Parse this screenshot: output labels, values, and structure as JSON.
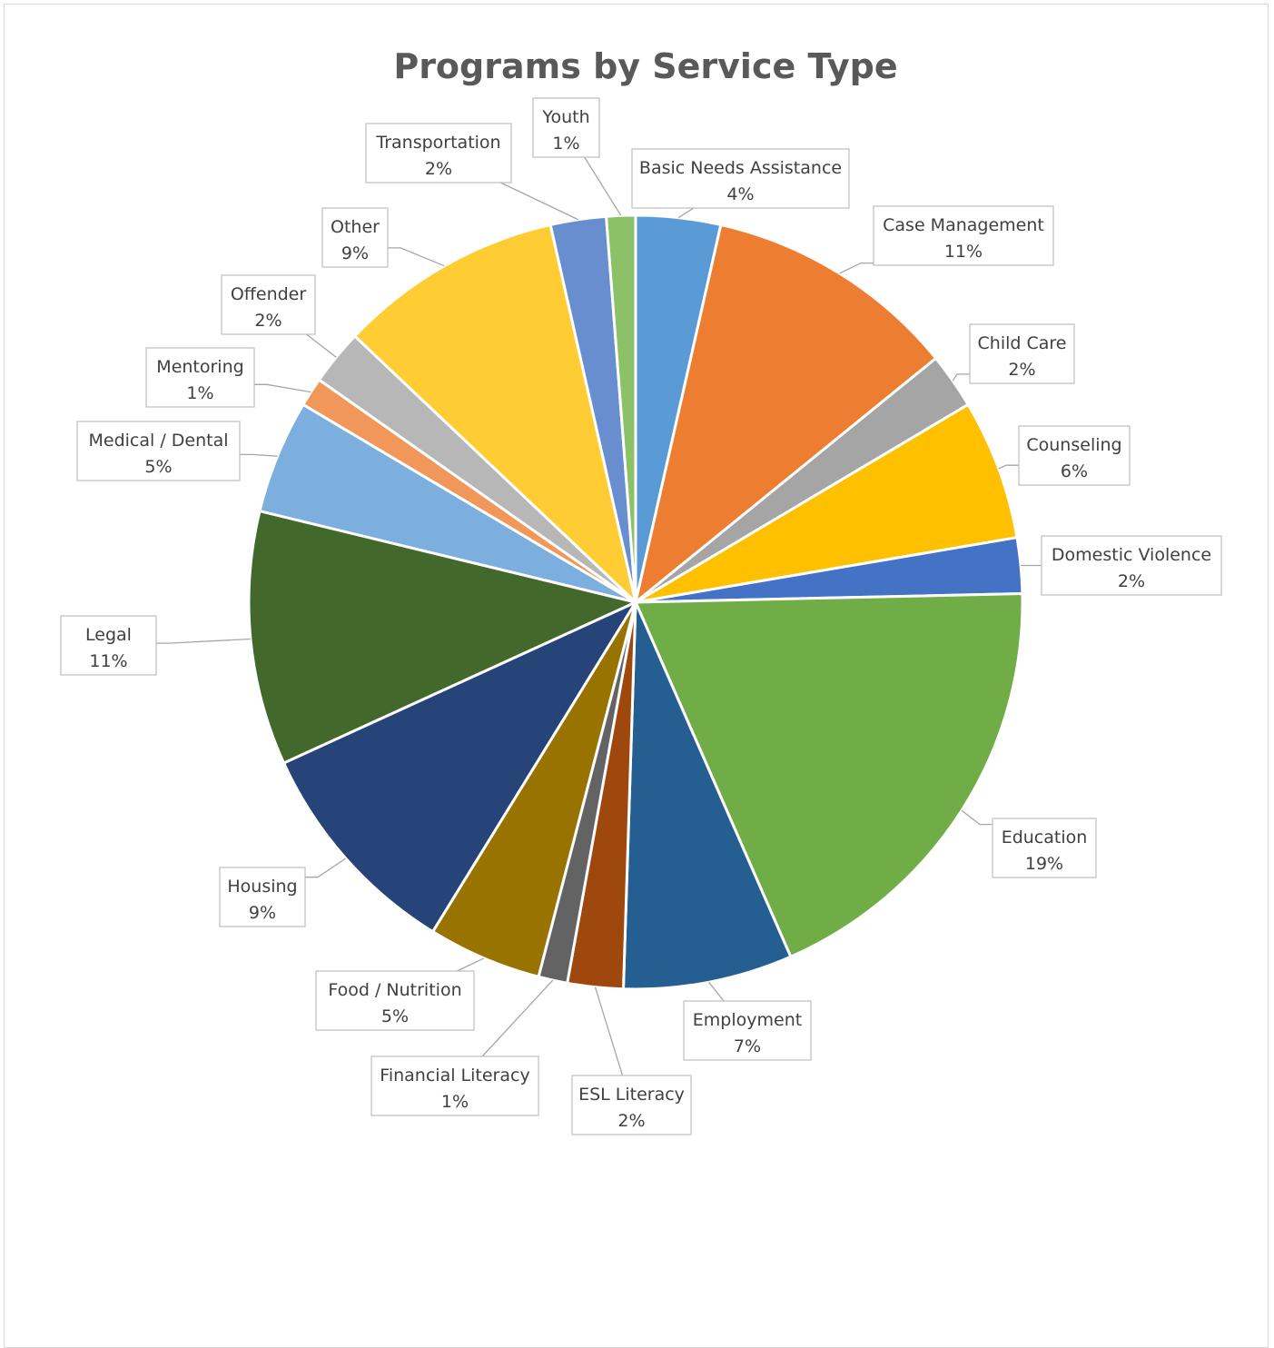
{
  "chart_data": {
    "type": "pie",
    "title": "Programs by Service Type",
    "start_angle_deg": 0,
    "direction": "clockwise",
    "data_labels": "category-and-percent",
    "legend": "none",
    "slices": [
      {
        "category": "Basic Needs Assistance",
        "value": 3.5,
        "label": "4%",
        "color": "#5B9BD5"
      },
      {
        "category": "Case Management",
        "value": 10.5,
        "label": "11%",
        "color": "#ED7D31"
      },
      {
        "category": "Child Care",
        "value": 2.3,
        "label": "2%",
        "color": "#A5A5A5"
      },
      {
        "category": "Counseling",
        "value": 5.8,
        "label": "6%",
        "color": "#FFC000"
      },
      {
        "category": "Domestic Violence",
        "value": 2.3,
        "label": "2%",
        "color": "#4472C4"
      },
      {
        "category": "Education",
        "value": 18.6,
        "label": "19%",
        "color": "#70AD47"
      },
      {
        "category": "Employment",
        "value": 7.0,
        "label": "7%",
        "color": "#255E91"
      },
      {
        "category": "ESL Literacy",
        "value": 2.3,
        "label": "2%",
        "color": "#9E480E"
      },
      {
        "category": "Financial Literacy",
        "value": 1.2,
        "label": "1%",
        "color": "#636363"
      },
      {
        "category": "Food / Nutrition",
        "value": 4.7,
        "label": "5%",
        "color": "#997300"
      },
      {
        "category": "Housing",
        "value": 9.3,
        "label": "9%",
        "color": "#264478"
      },
      {
        "category": "Legal",
        "value": 10.5,
        "label": "11%",
        "color": "#43682B"
      },
      {
        "category": "Medical / Dental",
        "value": 4.7,
        "label": "5%",
        "color": "#7CAFDD"
      },
      {
        "category": "Mentoring",
        "value": 1.2,
        "label": "1%",
        "color": "#F1975A"
      },
      {
        "category": "Offender",
        "value": 2.3,
        "label": "2%",
        "color": "#B7B7B7"
      },
      {
        "category": "Other",
        "value": 9.3,
        "label": "9%",
        "color": "#FFCD33"
      },
      {
        "category": "Transportation",
        "value": 2.3,
        "label": "2%",
        "color": "#698ED0"
      },
      {
        "category": "Youth",
        "value": 1.2,
        "label": "1%",
        "color": "#8CC168"
      }
    ]
  }
}
